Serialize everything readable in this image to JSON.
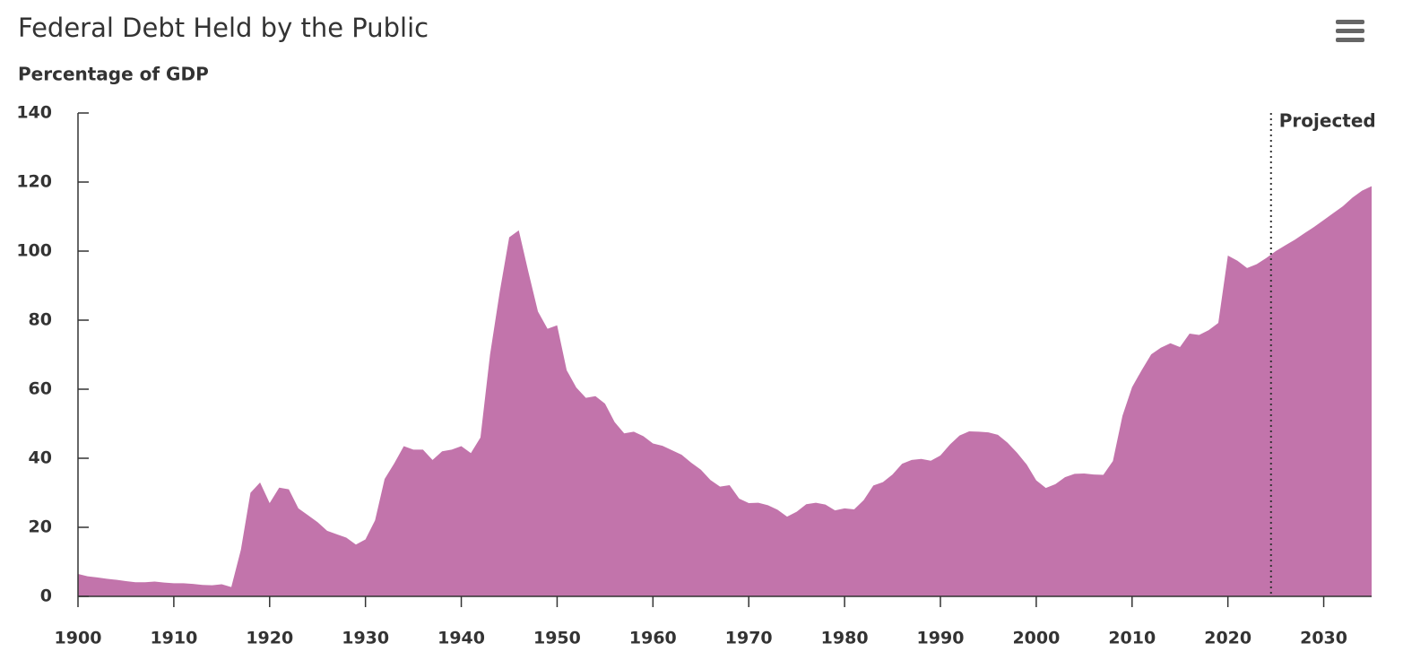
{
  "chart_data": {
    "type": "area",
    "title": "Federal Debt Held by the Public",
    "y_label": "Percentage of GDP",
    "annotation": {
      "text": "Projected",
      "x": 2024.5
    },
    "x": [
      1900,
      1901,
      1902,
      1903,
      1904,
      1905,
      1906,
      1907,
      1908,
      1909,
      1910,
      1911,
      1912,
      1913,
      1914,
      1915,
      1916,
      1917,
      1918,
      1919,
      1920,
      1921,
      1922,
      1923,
      1924,
      1925,
      1926,
      1927,
      1928,
      1929,
      1930,
      1931,
      1932,
      1933,
      1934,
      1935,
      1936,
      1937,
      1938,
      1939,
      1940,
      1941,
      1942,
      1943,
      1944,
      1945,
      1946,
      1947,
      1948,
      1949,
      1950,
      1951,
      1952,
      1953,
      1954,
      1955,
      1956,
      1957,
      1958,
      1959,
      1960,
      1961,
      1962,
      1963,
      1964,
      1965,
      1966,
      1967,
      1968,
      1969,
      1970,
      1971,
      1972,
      1973,
      1974,
      1975,
      1976,
      1977,
      1978,
      1979,
      1980,
      1981,
      1982,
      1983,
      1984,
      1985,
      1986,
      1987,
      1988,
      1989,
      1990,
      1991,
      1992,
      1993,
      1994,
      1995,
      1996,
      1997,
      1998,
      1999,
      2000,
      2001,
      2002,
      2003,
      2004,
      2005,
      2006,
      2007,
      2008,
      2009,
      2010,
      2011,
      2012,
      2013,
      2014,
      2015,
      2016,
      2017,
      2018,
      2019,
      2020,
      2021,
      2022,
      2023,
      2024,
      2025,
      2026,
      2027,
      2028,
      2029,
      2030,
      2031,
      2032,
      2033,
      2034,
      2035
    ],
    "series": [
      {
        "name": "Federal Debt Held by the Public",
        "color": "#c274ab",
        "values": [
          6.5,
          5.8,
          5.5,
          5.1,
          4.8,
          4.4,
          4.1,
          4.1,
          4.3,
          4.0,
          3.8,
          3.8,
          3.6,
          3.3,
          3.2,
          3.5,
          2.7,
          13.5,
          30,
          33,
          27,
          31.5,
          31,
          25.5,
          23.5,
          21.5,
          19,
          18,
          17,
          15,
          16.5,
          22,
          34,
          38.5,
          43.5,
          42.5,
          42.5,
          39.5,
          42,
          42.5,
          43.5,
          41.5,
          46,
          70,
          88,
          104,
          106,
          94,
          82.5,
          77.5,
          78.5,
          65.5,
          60.5,
          57.5,
          58,
          55.8,
          50.5,
          47.2,
          47.7,
          46.4,
          44.3,
          43.6,
          42.3,
          41,
          38.7,
          36.7,
          33.7,
          31.8,
          32.2,
          28.3,
          27,
          27.1,
          26.4,
          25.1,
          23.1,
          24.5,
          26.7,
          27.1,
          26.6,
          24.9,
          25.5,
          25.2,
          27.9,
          32.1,
          33.1,
          35.3,
          38.4,
          39.5,
          39.8,
          39.3,
          40.8,
          44,
          46.6,
          47.8,
          47.7,
          47.5,
          46.8,
          44.5,
          41.6,
          38.2,
          33.6,
          31.4,
          32.5,
          34.5,
          35.5,
          35.6,
          35.3,
          35.2,
          39.2,
          52.3,
          60.6,
          65.5,
          70.1,
          72,
          73.3,
          72.2,
          76.1,
          75.7,
          77.1,
          79.2,
          98.7,
          97.2,
          95.1,
          96.2,
          98,
          100,
          101.7,
          103.3,
          105.2,
          107,
          109,
          111,
          113,
          115.5,
          117.5,
          118.8
        ]
      }
    ],
    "xlim": [
      1900,
      2035
    ],
    "xticks": [
      1900,
      1910,
      1920,
      1930,
      1940,
      1950,
      1960,
      1970,
      1980,
      1990,
      2000,
      2010,
      2020,
      2030
    ],
    "ylim": [
      0,
      140
    ],
    "yticks": [
      0,
      20,
      40,
      60,
      80,
      100,
      120,
      140
    ],
    "grid": false
  }
}
